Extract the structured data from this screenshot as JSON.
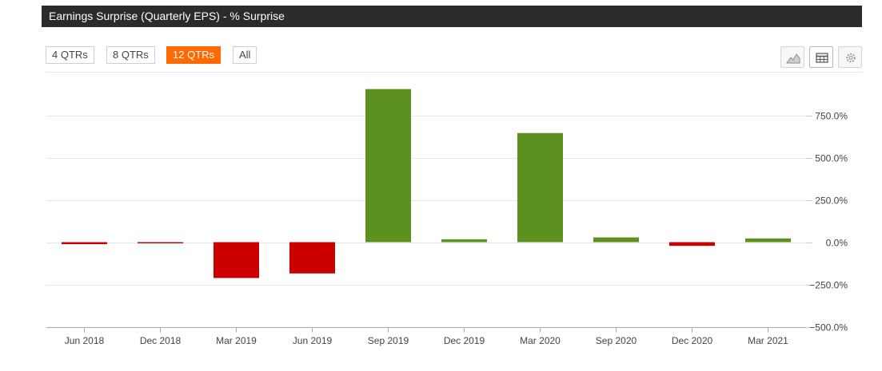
{
  "header": {
    "title": "Earnings Surprise (Quarterly EPS) - % Surprise"
  },
  "range_buttons": [
    {
      "label": "4 QTRs",
      "active": false
    },
    {
      "label": "8 QTRs",
      "active": false
    },
    {
      "label": "12 QTRs",
      "active": true
    },
    {
      "label": "All",
      "active": false
    }
  ],
  "toolbar": {
    "icons": [
      "area-chart-icon",
      "table-icon",
      "gear-icon"
    ],
    "active_icon": "table-icon"
  },
  "colors": {
    "positive": "#5c9120",
    "negative": "#cc0000",
    "accent": "#ff6a00",
    "title_bg": "#2b2b2b",
    "grid": "#e6e6e6"
  },
  "chart_data": {
    "type": "bar",
    "title": "Earnings Surprise (Quarterly EPS) - % Surprise",
    "categories": [
      "Jun 2018",
      "Dec 2018",
      "Mar 2019",
      "Jun 2019",
      "Sep 2019",
      "Dec 2019",
      "Mar 2020",
      "Sep 2020",
      "Dec 2020",
      "Mar 2021"
    ],
    "values": [
      -12,
      -6,
      -212,
      -185,
      905,
      17,
      645,
      28,
      -22,
      22
    ],
    "ylim": [
      -500,
      1000
    ],
    "y_ticks": [
      -500,
      -250,
      0,
      250,
      500,
      750
    ],
    "y_tick_labels": [
      "−500.0%",
      "−250.0%",
      "0.0%",
      "250.0%",
      "500.0%",
      "750.0%"
    ],
    "y_axis_side": "right",
    "grid": true,
    "xlabel": "",
    "ylabel": ""
  }
}
